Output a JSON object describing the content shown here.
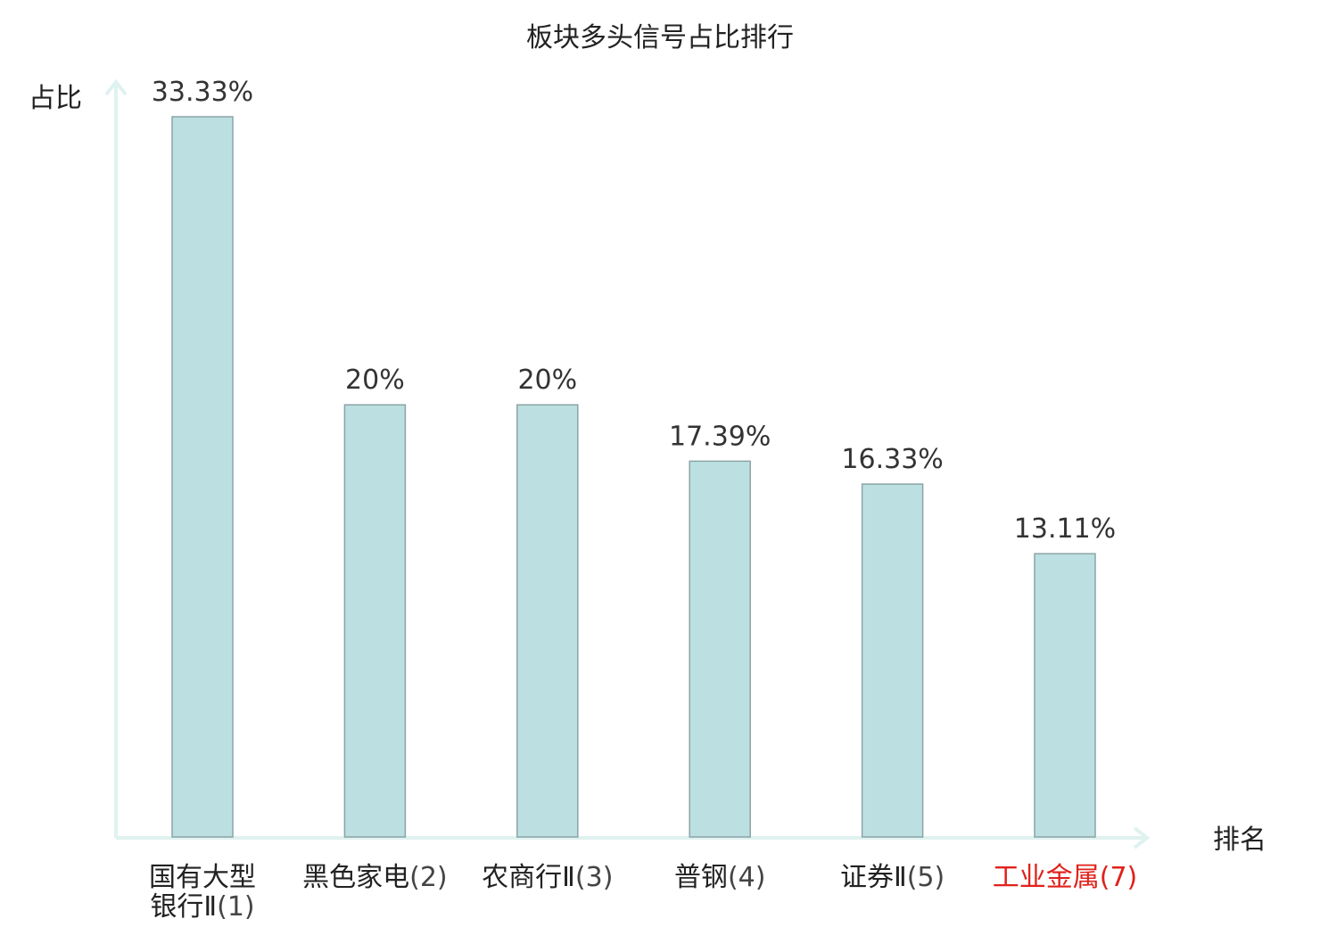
{
  "chart_data": {
    "type": "bar",
    "title": "板块多头信号占比排行",
    "ylabel": "占比",
    "xlabel": "排名",
    "ylim": [
      0,
      35
    ],
    "grid": false,
    "categories": [
      {
        "name": "国有大型银行Ⅱ",
        "rank": "(1)",
        "highlight": false
      },
      {
        "name": "黑色家电",
        "rank": "(2)",
        "highlight": false
      },
      {
        "name": "农商行Ⅱ",
        "rank": "(3)",
        "highlight": false
      },
      {
        "name": "普钢",
        "rank": "(4)",
        "highlight": false
      },
      {
        "name": "证券Ⅱ",
        "rank": "(5)",
        "highlight": false
      },
      {
        "name": "工业金属",
        "rank": "(7)",
        "highlight": true
      }
    ],
    "values": [
      33.33,
      20,
      20,
      17.39,
      16.33,
      13.11
    ],
    "value_labels": [
      "33.33%",
      "20%",
      "20%",
      "17.39%",
      "16.33%",
      "13.11%"
    ]
  },
  "colors": {
    "bar_fill": "#bce0e2",
    "bar_stroke": "#8aa4a6",
    "axis": "#dff2ef",
    "text": "#222222",
    "value_text": "#333333",
    "highlight": "#e0211b"
  }
}
